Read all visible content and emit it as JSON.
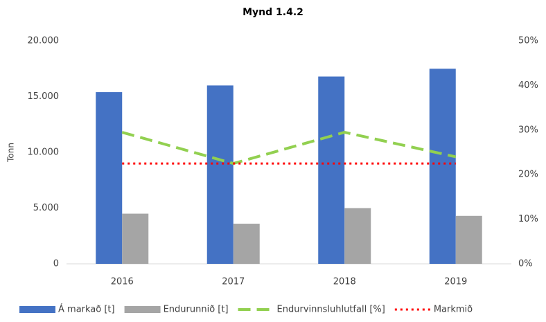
{
  "chart_data": {
    "type": "bar",
    "title": "Mynd 1.4.2",
    "ylabel": "Tonn",
    "categories": [
      "2016",
      "2017",
      "2018",
      "2019"
    ],
    "series": [
      {
        "name": "Á markað [t]",
        "color": "#4472c4",
        "type": "bar",
        "values": [
          15400,
          16000,
          16800,
          17500
        ]
      },
      {
        "name": "Endurunnið [t]",
        "color": "#a5a5a5",
        "type": "bar",
        "values": [
          4500,
          3600,
          5000,
          4300
        ]
      },
      {
        "name": "Endurvinnsluhlutfall [%]",
        "color": "#92d050",
        "type": "line",
        "linestyle": "dashed",
        "axis": "y2",
        "values": [
          29.5,
          22.5,
          29.5,
          24
        ]
      },
      {
        "name": "Markmið",
        "color": "#ff0000",
        "type": "line",
        "linestyle": "dotted",
        "axis": "y2",
        "values": [
          22.5,
          22.5,
          22.5,
          22.5
        ]
      }
    ],
    "ylim": [
      0,
      20000
    ],
    "yticks": [
      0,
      {
        "value": 5000,
        "label": "5.000"
      },
      {
        "value": 10000,
        "label": "10.000"
      },
      {
        "value": 15000,
        "label": "15.000"
      },
      {
        "value": 20000,
        "label": "20.000"
      }
    ],
    "y2lim": [
      0,
      50
    ],
    "y2ticks": [
      {
        "value": 0,
        "label": "0%"
      },
      {
        "value": 10,
        "label": "10%"
      },
      {
        "value": 20,
        "label": "20%"
      },
      {
        "value": 30,
        "label": "30%"
      },
      {
        "value": 40,
        "label": "40%"
      },
      {
        "value": 50,
        "label": "50%"
      }
    ],
    "legend": "bottom"
  }
}
